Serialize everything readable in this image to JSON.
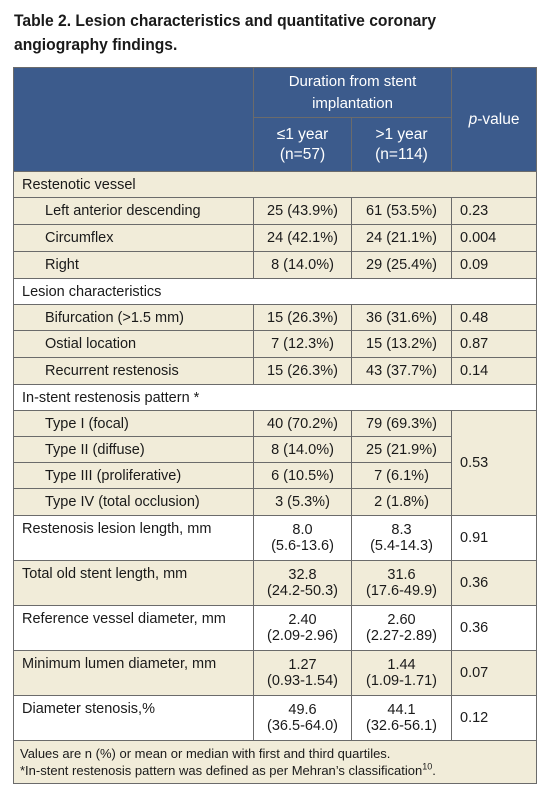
{
  "caption": {
    "line1": "Table 2. Lesion characteristics and quantitative coronary",
    "line2": "angiography findings."
  },
  "header": {
    "group": "Duration from stent implantation",
    "col1_line1": "≤1 year",
    "col1_line2": "(n=57)",
    "col2_line1": ">1 year",
    "col2_line2": "(n=114)",
    "pvalue_italic": "p",
    "pvalue_rest": "-value"
  },
  "sections": {
    "restenotic_vessel": {
      "title": "Restenotic vessel",
      "rows": [
        {
          "label": "Left anterior descending",
          "a": "25 (43.9%)",
          "b": "61 (53.5%)",
          "p": "0.23"
        },
        {
          "label": "Circumflex",
          "a": "24 (42.1%)",
          "b": "24 (21.1%)",
          "p": "0.004"
        },
        {
          "label": "Right",
          "a": "8 (14.0%)",
          "b": "29 (25.4%)",
          "p": "0.09"
        }
      ]
    },
    "lesion": {
      "title": "Lesion characteristics",
      "rows": [
        {
          "label": "Bifurcation (>1.5 mm)",
          "a": "15 (26.3%)",
          "b": "36 (31.6%)",
          "p": "0.48"
        },
        {
          "label": "Ostial location",
          "a": "7 (12.3%)",
          "b": "15 (13.2%)",
          "p": "0.87"
        },
        {
          "label": "Recurrent restenosis",
          "a": "15 (26.3%)",
          "b": "43 (37.7%)",
          "p": "0.14"
        }
      ]
    },
    "pattern": {
      "title": "In-stent restenosis pattern *",
      "p": "0.53",
      "rows": [
        {
          "label": "Type I (focal)",
          "a": "40 (70.2%)",
          "b": "79 (69.3%)"
        },
        {
          "label": "Type II (diffuse)",
          "a": "8 (14.0%)",
          "b": "25 (21.9%)"
        },
        {
          "label": "Type III (proliferative)",
          "a": "6 (10.5%)",
          "b": "7 (6.1%)"
        },
        {
          "label": "Type IV (total occlusion)",
          "a": "3 (5.3%)",
          "b": "2 (1.8%)"
        }
      ]
    }
  },
  "measures": [
    {
      "label": "Restenosis lesion length, mm",
      "a1": "8.0",
      "a2": "(5.6-13.6)",
      "b1": "8.3",
      "b2": "(5.4-14.3)",
      "p": "0.91"
    },
    {
      "label": "Total old stent length, mm",
      "a1": "32.8",
      "a2": "(24.2-50.3)",
      "b1": "31.6",
      "b2": "(17.6-49.9)",
      "p": "0.36"
    },
    {
      "label": "Reference vessel diameter, mm",
      "a1": "2.40",
      "a2": "(2.09-2.96)",
      "b1": "2.60",
      "b2": "(2.27-2.89)",
      "p": "0.36"
    },
    {
      "label": "Minimum lumen diameter, mm",
      "a1": "1.27",
      "a2": "(0.93-1.54)",
      "b1": "1.44",
      "b2": "(1.09-1.71)",
      "p": "0.07"
    },
    {
      "label": "Diameter stenosis,%",
      "a1": "49.6",
      "a2": "(36.5-64.0)",
      "b1": "44.1",
      "b2": "(32.6-56.1)",
      "p": "0.12"
    }
  ],
  "footnote": {
    "line1": "Values are n (%) or mean or median with first and third quartiles.",
    "line2": "*In-stent restenosis pattern was defined as per Mehran’s classification",
    "ref": "10",
    "end": "."
  }
}
